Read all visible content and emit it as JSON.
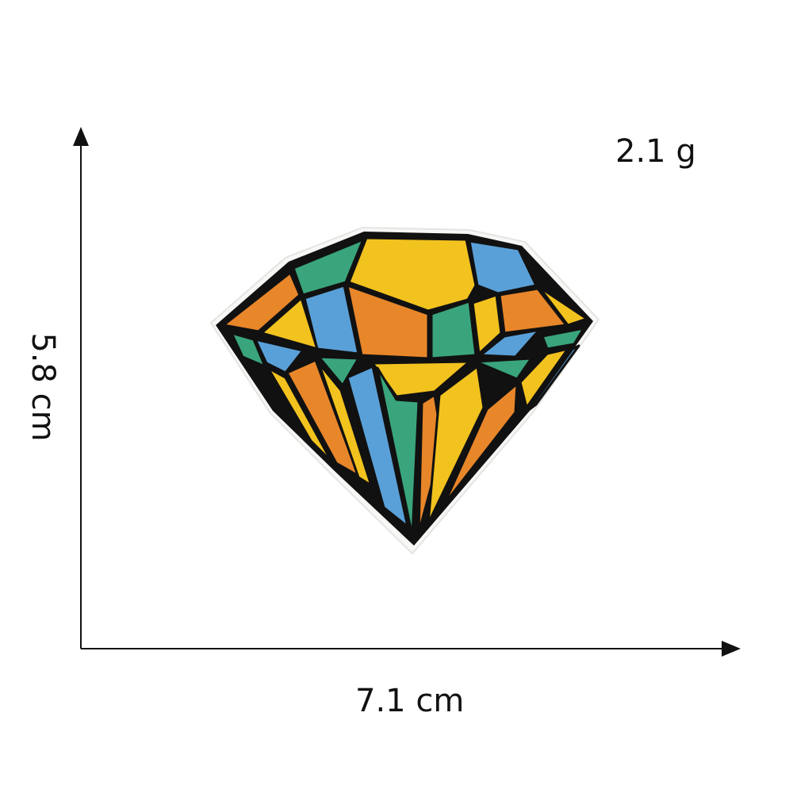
{
  "weight_label": "2.1 g",
  "width_label": "7.1 cm",
  "height_label": "5.8 cm",
  "patch": {
    "subject": "embroidered-diamond-patch",
    "colors": {
      "yellow": "#f2c21e",
      "orange": "#e8862a",
      "blue": "#5aa0d8",
      "green": "#3aa57c",
      "outline": "#111111",
      "backing": "#f7f7f5"
    }
  }
}
